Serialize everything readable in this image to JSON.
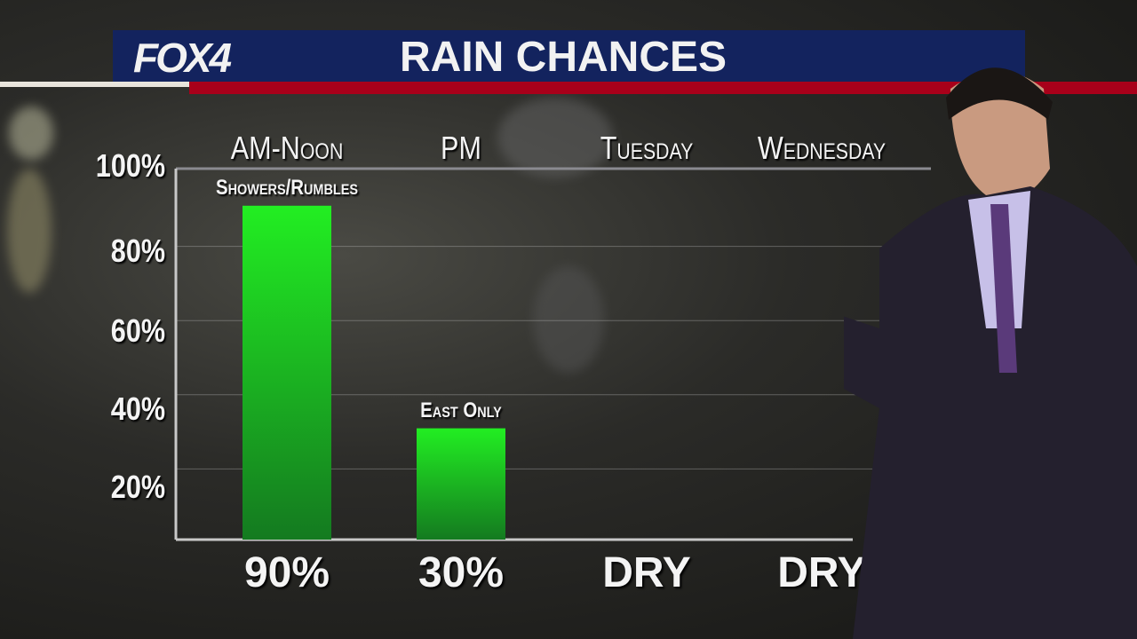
{
  "header": {
    "logo": "FOX4",
    "title": "RAIN CHANCES"
  },
  "colors": {
    "banner": "#13235e",
    "accent_red": "#a8001a",
    "bar_green": "#22ee22"
  },
  "chart_data": {
    "type": "bar",
    "title": "RAIN CHANCES",
    "categories": [
      "AM-Noon",
      "PM",
      "Tuesday",
      "Wednesday"
    ],
    "values": [
      90,
      30,
      0,
      0
    ],
    "value_labels": [
      "90%",
      "30%",
      "DRY",
      "DRY"
    ],
    "annotations": [
      "Showers/Rumbles",
      "East Only",
      "",
      ""
    ],
    "yticks": [
      "20%",
      "40%",
      "60%",
      "80%",
      "100%"
    ],
    "ylim": [
      0,
      100
    ],
    "grid": true
  }
}
